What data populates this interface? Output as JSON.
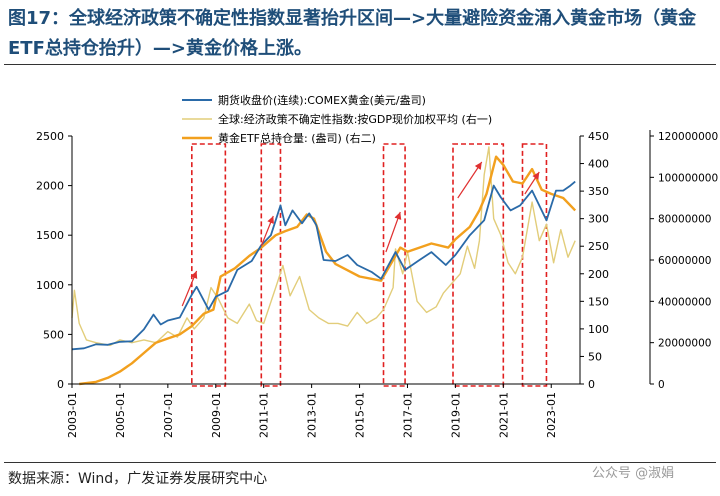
{
  "header": {
    "title": "图17：全球经济政策不确定性指数显著抬升区间—>大量避险资金涌入黄金市场（黄金ETF总持仓抬升）—>黄金价格上涨。"
  },
  "footer": {
    "source": "数据来源：Wind，广发证券发展研究中心",
    "watermark": "公众号 @淑娟"
  },
  "colors": {
    "gold_price": "#2a6aa8",
    "uncertainty": "#e2cd7a",
    "etf": "#f2a01e",
    "highlight": "#e02020",
    "arrow": "#e03030"
  },
  "chart_data": {
    "type": "line",
    "x_tick_labels": [
      "2003-01",
      "2005-01",
      "2007-01",
      "2009-01",
      "2011-01",
      "2013-01",
      "2015-01",
      "2017-01",
      "2019-01",
      "2021-01",
      "2023-01"
    ],
    "y_left": {
      "ticks": [
        "0",
        "500",
        "1000",
        "1500",
        "2000",
        "2500"
      ],
      "ylim": [
        0,
        2500
      ]
    },
    "y_right1": {
      "ticks": [
        "0",
        "50",
        "100",
        "150",
        "200",
        "250",
        "300",
        "350",
        "400",
        "450"
      ],
      "ylim": [
        0,
        450
      ]
    },
    "y_right2": {
      "ticks": [
        "0",
        "20000000",
        "40000000",
        "60000000",
        "80000000",
        "100000000",
        "120000000"
      ],
      "ylim": [
        0,
        120000000
      ]
    },
    "legend": [
      "期货收盘价(连续):COMEX黄金(美元/盎司)",
      "全球:经济政策不确定性指数:按GDP现价加权平均  (右一)",
      "黄金ETF总持仓量:  (盎司)           (右二)"
    ],
    "series": [
      {
        "name": "期货收盘价(连续):COMEX黄金(美元/盎司)",
        "axis": "left",
        "points": [
          [
            2003.0,
            350
          ],
          [
            2003.5,
            360
          ],
          [
            2004.0,
            400
          ],
          [
            2004.5,
            395
          ],
          [
            2005.0,
            425
          ],
          [
            2005.5,
            430
          ],
          [
            2006.0,
            550
          ],
          [
            2006.4,
            700
          ],
          [
            2006.7,
            600
          ],
          [
            2007.0,
            640
          ],
          [
            2007.5,
            670
          ],
          [
            2008.0,
            900
          ],
          [
            2008.2,
            980
          ],
          [
            2008.7,
            750
          ],
          [
            2009.0,
            880
          ],
          [
            2009.5,
            940
          ],
          [
            2009.9,
            1150
          ],
          [
            2010.5,
            1240
          ],
          [
            2010.9,
            1400
          ],
          [
            2011.3,
            1500
          ],
          [
            2011.7,
            1800
          ],
          [
            2011.9,
            1600
          ],
          [
            2012.2,
            1750
          ],
          [
            2012.6,
            1620
          ],
          [
            2012.9,
            1720
          ],
          [
            2013.2,
            1600
          ],
          [
            2013.5,
            1250
          ],
          [
            2014.0,
            1240
          ],
          [
            2014.5,
            1300
          ],
          [
            2014.9,
            1200
          ],
          [
            2015.5,
            1130
          ],
          [
            2015.9,
            1060
          ],
          [
            2016.5,
            1330
          ],
          [
            2016.9,
            1150
          ],
          [
            2017.5,
            1250
          ],
          [
            2018.0,
            1330
          ],
          [
            2018.6,
            1200
          ],
          [
            2019.0,
            1300
          ],
          [
            2019.6,
            1500
          ],
          [
            2020.2,
            1650
          ],
          [
            2020.6,
            2000
          ],
          [
            2020.9,
            1880
          ],
          [
            2021.3,
            1750
          ],
          [
            2021.7,
            1800
          ],
          [
            2022.2,
            1950
          ],
          [
            2022.8,
            1650
          ],
          [
            2023.2,
            1950
          ],
          [
            2023.5,
            1950
          ],
          [
            2023.8,
            2000
          ],
          [
            2024.0,
            2040
          ]
        ]
      },
      {
        "name": "全球:经济政策不确定性指数:按GDP现价加权平均  (右一)",
        "axis": "right1",
        "points": [
          [
            2003.0,
            120
          ],
          [
            2003.1,
            170
          ],
          [
            2003.3,
            110
          ],
          [
            2003.6,
            80
          ],
          [
            2004.0,
            75
          ],
          [
            2004.6,
            70
          ],
          [
            2005.0,
            80
          ],
          [
            2005.5,
            75
          ],
          [
            2006.0,
            80
          ],
          [
            2006.5,
            75
          ],
          [
            2007.0,
            95
          ],
          [
            2007.4,
            85
          ],
          [
            2007.8,
            120
          ],
          [
            2008.1,
            100
          ],
          [
            2008.5,
            120
          ],
          [
            2008.8,
            175
          ],
          [
            2009.1,
            155
          ],
          [
            2009.5,
            120
          ],
          [
            2009.9,
            110
          ],
          [
            2010.4,
            145
          ],
          [
            2010.7,
            115
          ],
          [
            2011.0,
            110
          ],
          [
            2011.5,
            175
          ],
          [
            2011.8,
            215
          ],
          [
            2012.1,
            160
          ],
          [
            2012.5,
            195
          ],
          [
            2012.9,
            135
          ],
          [
            2013.3,
            120
          ],
          [
            2013.7,
            110
          ],
          [
            2014.1,
            110
          ],
          [
            2014.5,
            105
          ],
          [
            2014.9,
            130
          ],
          [
            2015.3,
            110
          ],
          [
            2015.7,
            120
          ],
          [
            2016.0,
            135
          ],
          [
            2016.4,
            175
          ],
          [
            2016.5,
            245
          ],
          [
            2016.8,
            200
          ],
          [
            2017.0,
            240
          ],
          [
            2017.4,
            150
          ],
          [
            2017.8,
            130
          ],
          [
            2018.2,
            140
          ],
          [
            2018.5,
            165
          ],
          [
            2018.9,
            185
          ],
          [
            2019.2,
            200
          ],
          [
            2019.5,
            250
          ],
          [
            2019.8,
            210
          ],
          [
            2020.0,
            260
          ],
          [
            2020.2,
            380
          ],
          [
            2020.4,
            430
          ],
          [
            2020.6,
            300
          ],
          [
            2020.9,
            270
          ],
          [
            2021.2,
            220
          ],
          [
            2021.5,
            200
          ],
          [
            2021.8,
            230
          ],
          [
            2022.2,
            330
          ],
          [
            2022.5,
            260
          ],
          [
            2022.8,
            290
          ],
          [
            2023.1,
            220
          ],
          [
            2023.4,
            280
          ],
          [
            2023.7,
            230
          ],
          [
            2024.0,
            260
          ]
        ]
      },
      {
        "name": "黄金ETF总持仓量:  (盎司)           (右二)",
        "axis": "right2",
        "points": [
          [
            2003.3,
            0
          ],
          [
            2004.0,
            1000000
          ],
          [
            2004.5,
            3000000
          ],
          [
            2005.0,
            6000000
          ],
          [
            2005.5,
            10000000
          ],
          [
            2006.0,
            15000000
          ],
          [
            2006.5,
            20000000
          ],
          [
            2007.0,
            22000000
          ],
          [
            2007.5,
            24000000
          ],
          [
            2008.0,
            28000000
          ],
          [
            2008.5,
            34000000
          ],
          [
            2008.9,
            36000000
          ],
          [
            2009.2,
            52000000
          ],
          [
            2009.8,
            56000000
          ],
          [
            2010.4,
            62000000
          ],
          [
            2010.9,
            66000000
          ],
          [
            2011.5,
            72000000
          ],
          [
            2011.9,
            74000000
          ],
          [
            2012.4,
            76000000
          ],
          [
            2012.8,
            82000000
          ],
          [
            2013.1,
            80000000
          ],
          [
            2013.6,
            64000000
          ],
          [
            2014.0,
            58000000
          ],
          [
            2014.5,
            55000000
          ],
          [
            2015.0,
            52000000
          ],
          [
            2015.9,
            50000000
          ],
          [
            2016.3,
            58000000
          ],
          [
            2016.7,
            66000000
          ],
          [
            2017.0,
            64000000
          ],
          [
            2017.5,
            66000000
          ],
          [
            2018.0,
            68000000
          ],
          [
            2018.7,
            66000000
          ],
          [
            2019.0,
            70000000
          ],
          [
            2019.6,
            76000000
          ],
          [
            2020.0,
            84000000
          ],
          [
            2020.3,
            92000000
          ],
          [
            2020.7,
            110000000
          ],
          [
            2021.0,
            106000000
          ],
          [
            2021.4,
            98000000
          ],
          [
            2021.8,
            97000000
          ],
          [
            2022.2,
            104000000
          ],
          [
            2022.6,
            94000000
          ],
          [
            2023.0,
            92000000
          ],
          [
            2023.5,
            90000000
          ],
          [
            2024.0,
            84000000
          ]
        ]
      }
    ],
    "highlight_ranges": [
      [
        2008.0,
        2009.4
      ],
      [
        2010.9,
        2011.7
      ],
      [
        2016.0,
        2016.9
      ],
      [
        2018.9,
        2021.0
      ],
      [
        2021.8,
        2022.8
      ]
    ],
    "arrows": [
      [
        2007.6,
        2008.2
      ],
      [
        2010.9,
        2011.4
      ],
      [
        2016.1,
        2016.7
      ],
      [
        2019.1,
        2020.1
      ],
      [
        2021.9,
        2022.5
      ]
    ]
  }
}
